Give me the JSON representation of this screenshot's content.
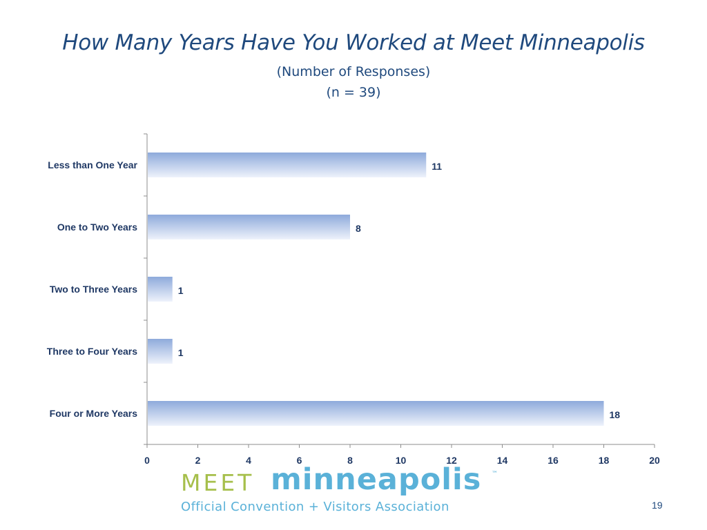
{
  "slide": {
    "page_number": "19"
  },
  "logo": {
    "meet": "MEET",
    "minneapolis": "minneapolis",
    "tm": "™",
    "tagline": "Official Convention + Visitors Association"
  },
  "colors": {
    "title": "#1f497d",
    "label": "#1f3864",
    "bar_top": "#8eaadb",
    "bar_bottom": "#eef2fb",
    "axis": "#8c8c8c",
    "logo_green": "#a6bf4b",
    "logo_blue": "#5ab1d8"
  },
  "chart_data": {
    "type": "bar",
    "orientation": "horizontal",
    "title": "How Many Years Have You Worked at Meet Minneapolis",
    "subtitle": "(Number of Responses)",
    "n_label": "(n = 39)",
    "categories": [
      "Less than One Year",
      "One to Two Years",
      "Two to Three Years",
      "Three to Four Years",
      "Four or More Years"
    ],
    "values": [
      11,
      8,
      1,
      1,
      18
    ],
    "data_labels": [
      "11",
      "8",
      "1",
      "1",
      "18"
    ],
    "xlim": [
      0,
      20
    ],
    "xticks": [
      0,
      2,
      4,
      6,
      8,
      10,
      12,
      14,
      16,
      18,
      20
    ],
    "grid": false,
    "legend": "none"
  }
}
